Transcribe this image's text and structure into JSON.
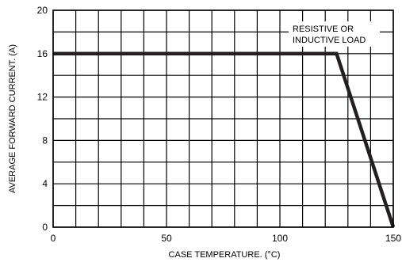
{
  "chart_data": {
    "type": "line",
    "title": "",
    "xlabel": "CASE  TEMPERATURE. (°C)",
    "ylabel": "AVERAGE FORWARD CURRENT. (A)",
    "xlim": [
      0,
      150
    ],
    "ylim": [
      0,
      20
    ],
    "x_ticks": [
      0,
      50,
      100,
      150
    ],
    "y_ticks": [
      0,
      4,
      8,
      12,
      16,
      20
    ],
    "x_gridlines": [
      0,
      10,
      20,
      30,
      40,
      50,
      60,
      70,
      80,
      90,
      100,
      110,
      120,
      130,
      140,
      150
    ],
    "y_gridlines": [
      0,
      2,
      4,
      6,
      8,
      10,
      12,
      14,
      16,
      18,
      20
    ],
    "grid": true,
    "annotation": [
      "RESISTIVE OR",
      "INDUCTIVE LOAD"
    ],
    "series": [
      {
        "x": [
          0,
          125,
          150
        ],
        "y": [
          16,
          16,
          0
        ]
      }
    ],
    "colors": {
      "line": "#231f20",
      "grid": "#000000"
    }
  }
}
